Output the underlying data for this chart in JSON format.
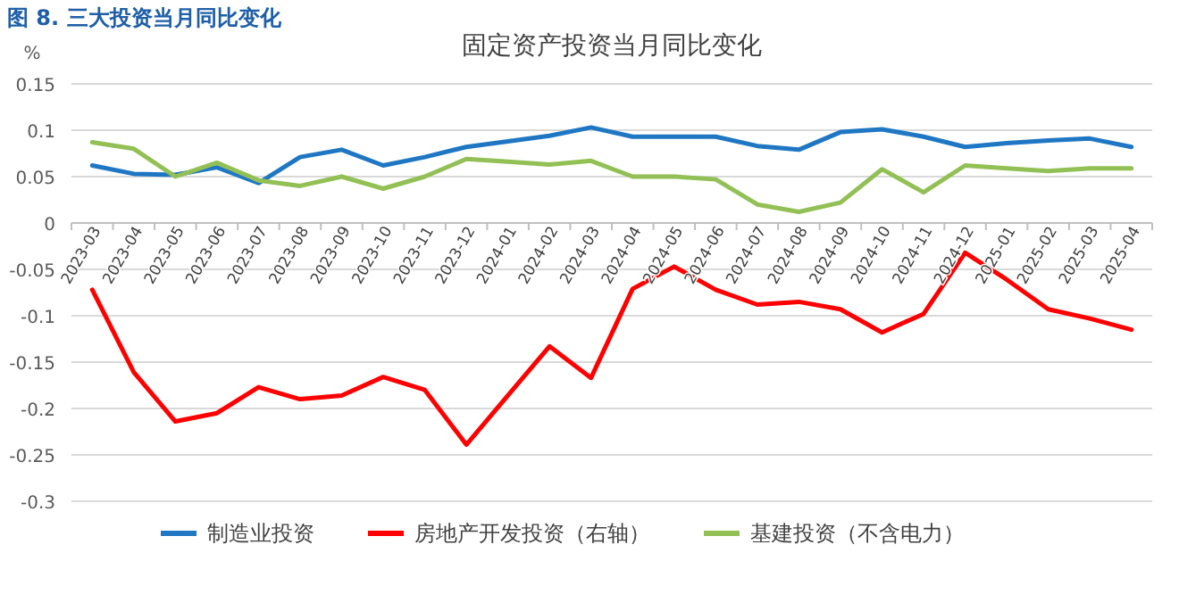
{
  "chart_data": {
    "type": "line",
    "title": "固定资产投资当月同比变化",
    "ylabel": "%",
    "annotations": [
      "图 8.  三大投资当月同比变化"
    ],
    "categories": [
      "2023-03",
      "2023-04",
      "2023-05",
      "2023-06",
      "2023-07",
      "2023-08",
      "2023-09",
      "2023-10",
      "2023-11",
      "2023-12",
      "2024-01",
      "2024-02",
      "2024-03",
      "2024-04",
      "2024-05",
      "2024-06",
      "2024-07",
      "2024-08",
      "2024-09",
      "2024-10",
      "2024-11",
      "2024-12",
      "2025-01",
      "2025-02",
      "2025-03",
      "2025-04"
    ],
    "series": [
      {
        "name": "制造业投资",
        "color": "#1f77c4",
        "values": [
          0.062,
          0.053,
          0.052,
          0.06,
          0.043,
          0.071,
          0.079,
          0.062,
          0.071,
          0.082,
          0.088,
          0.094,
          0.103,
          0.093,
          0.093,
          0.093,
          0.083,
          0.079,
          0.098,
          0.101,
          0.093,
          0.082,
          0.086,
          0.089,
          0.091,
          0.082
        ]
      },
      {
        "name": "房地产开发投资（右轴）",
        "color": "#ff0000",
        "values": [
          -0.072,
          -0.161,
          -0.214,
          -0.205,
          -0.177,
          -0.19,
          -0.186,
          -0.166,
          -0.18,
          -0.239,
          -0.186,
          -0.133,
          -0.167,
          -0.071,
          -0.047,
          -0.072,
          -0.088,
          -0.085,
          -0.093,
          -0.118,
          -0.098,
          -0.032,
          -0.061,
          -0.093,
          -0.103,
          -0.115
        ]
      },
      {
        "name": "基建投资（不含电力）",
        "color": "#92c055",
        "values": [
          0.087,
          0.08,
          0.05,
          0.065,
          0.046,
          0.04,
          0.05,
          0.037,
          0.05,
          0.069,
          0.066,
          0.063,
          0.067,
          0.05,
          0.05,
          0.047,
          0.02,
          0.012,
          0.022,
          0.058,
          0.033,
          0.062,
          0.059,
          0.056,
          0.059,
          0.059
        ]
      }
    ],
    "ylim": [
      -0.3,
      0.15
    ],
    "yticks": [
      0.15,
      0.1,
      0.05,
      0,
      -0.05,
      -0.1,
      -0.15,
      -0.2,
      -0.25,
      -0.3
    ],
    "grid": "y",
    "legend": "bottom",
    "marker": "none",
    "line_style": "solid"
  }
}
